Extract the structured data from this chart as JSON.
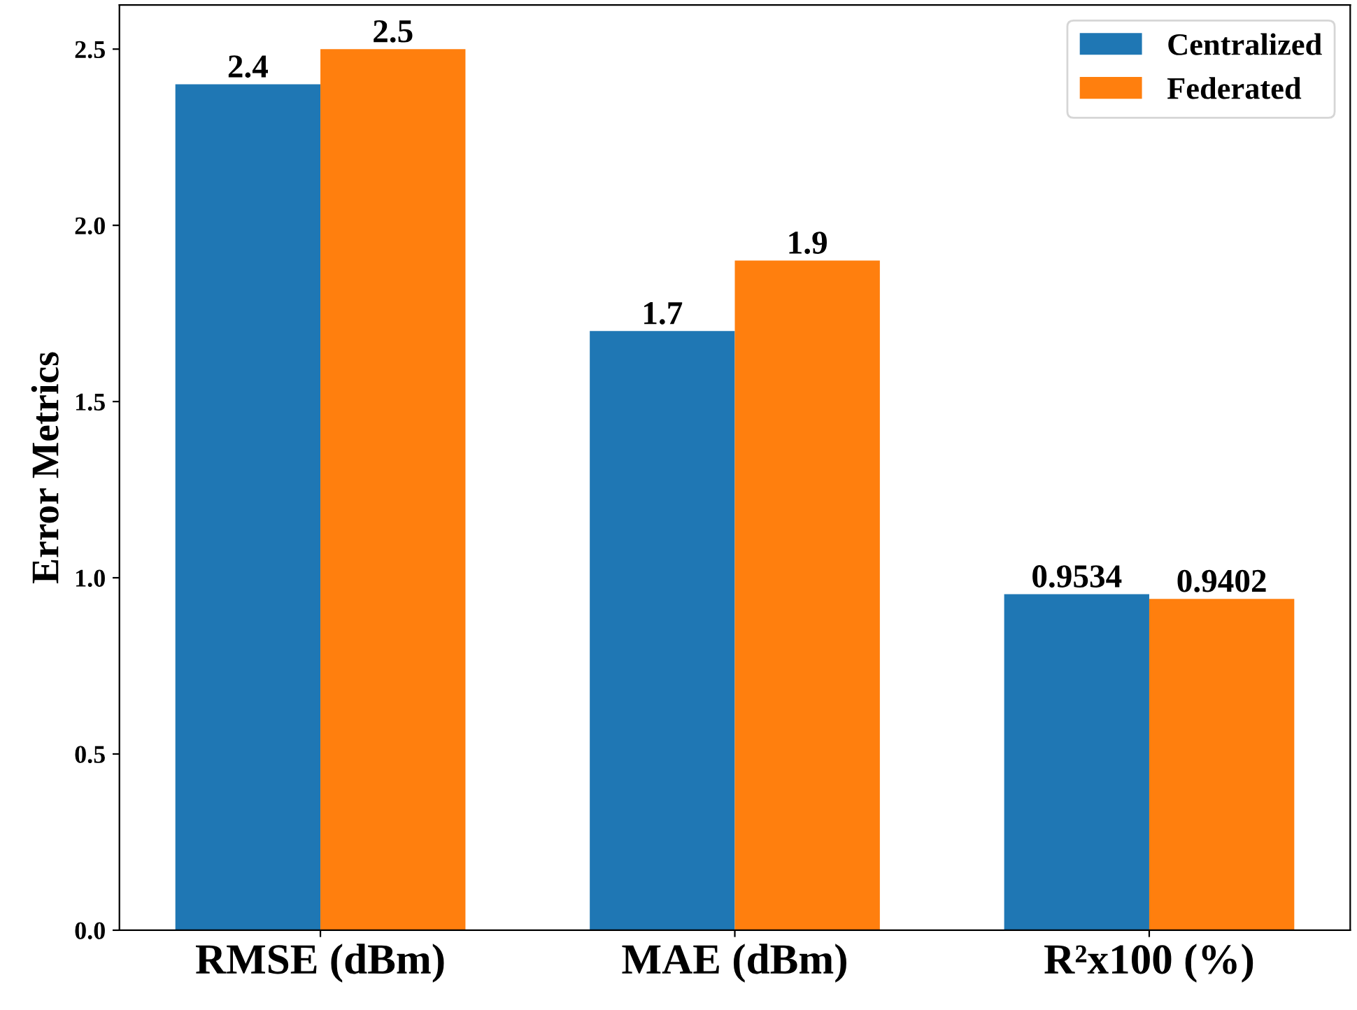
{
  "chart_data": {
    "type": "bar",
    "ylabel": "Error Metrics",
    "categories": [
      "RMSE (dBm)",
      "MAE (dBm)",
      "R²x100 (%)"
    ],
    "series": [
      {
        "name": "Centralized",
        "color": "#1f77b4",
        "values": [
          2.4,
          1.7,
          0.9534
        ]
      },
      {
        "name": "Federated",
        "color": "#ff7f0e",
        "values": [
          2.5,
          1.9,
          0.9402
        ]
      }
    ],
    "ylim": [
      0,
      2.625
    ],
    "yticks": [
      {
        "value": 0,
        "label": "0.0"
      },
      {
        "value": 0.5,
        "label": "0.5"
      },
      {
        "value": 1,
        "label": "1.0"
      },
      {
        "value": 1.5,
        "label": "1.5"
      },
      {
        "value": 2,
        "label": "2.0"
      },
      {
        "value": 2.5,
        "label": "2.5"
      }
    ],
    "data_labels": true,
    "legend": "top right",
    "grid": false
  }
}
